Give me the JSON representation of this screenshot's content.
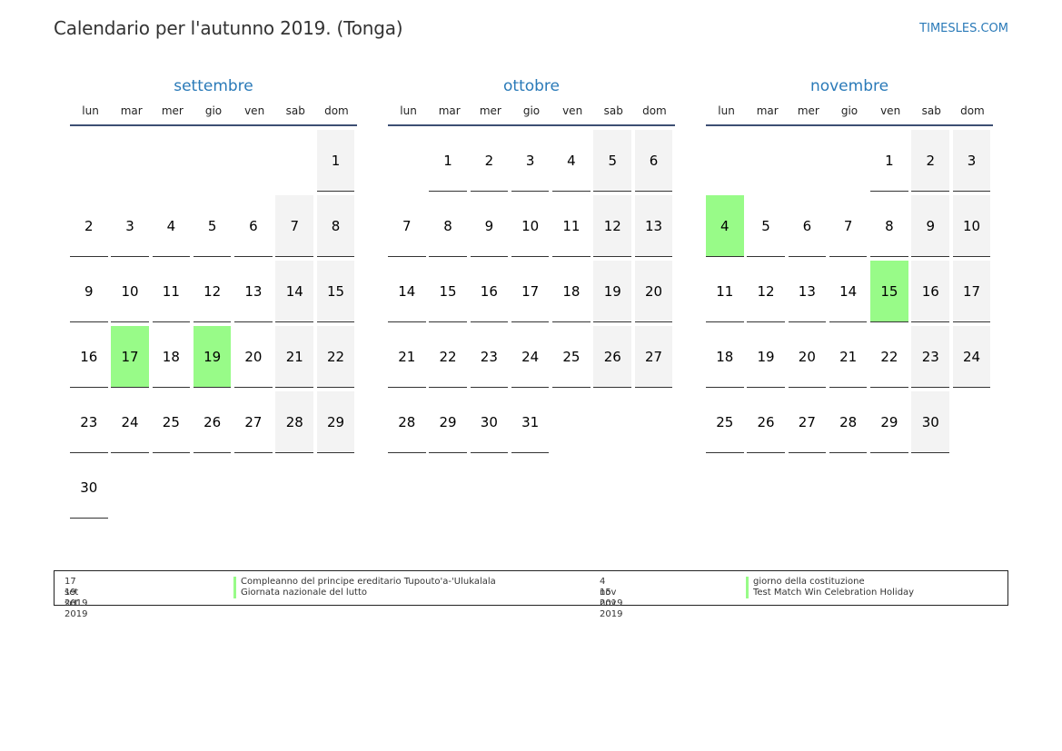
{
  "title": "Calendario per l'autunno 2019. (Tonga)",
  "site": "TIMESLES.COM",
  "colors": {
    "accent": "#2a7ab8",
    "holiday": "#98fb88",
    "weekend": "#f3f3f3"
  },
  "weekdays": [
    "lun",
    "mar",
    "mer",
    "gio",
    "ven",
    "sab",
    "dom"
  ],
  "months": [
    {
      "name": "settembre",
      "start_weekday": 6,
      "days": 30,
      "holidays": [
        17,
        19
      ]
    },
    {
      "name": "ottobre",
      "start_weekday": 1,
      "days": 31,
      "holidays": []
    },
    {
      "name": "novembre",
      "start_weekday": 4,
      "days": 30,
      "holidays": [
        4,
        15
      ]
    }
  ],
  "legend": [
    {
      "date": "17 set 2019",
      "name": "Compleanno del principe ereditario Tupouto'a-'Ulukalala"
    },
    {
      "date": "19 set 2019",
      "name": "Giornata nazionale del lutto"
    },
    {
      "date": "4 nov 2019",
      "name": "giorno della costituzione"
    },
    {
      "date": "15 nov 2019",
      "name": "Test Match Win Celebration Holiday"
    }
  ]
}
